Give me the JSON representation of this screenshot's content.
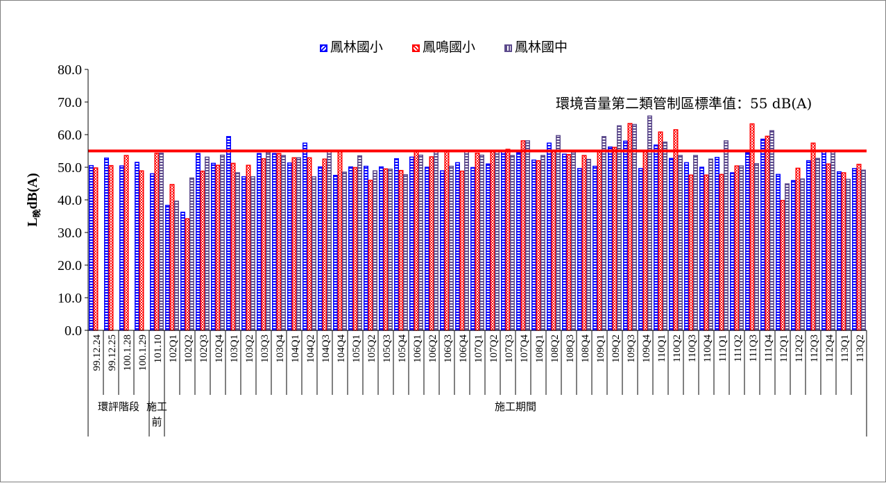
{
  "chart_data": {
    "type": "bar",
    "ylabel_main": "L",
    "ylabel_sub": "晚",
    "ylabel_unit": "dB(A)",
    "ylim": [
      0,
      80
    ],
    "yticks": [
      "0.0",
      "10.0",
      "20.0",
      "30.0",
      "40.0",
      "50.0",
      "60.0",
      "70.0",
      "80.0"
    ],
    "categories": [
      "99.12.24",
      "99.12.25",
      "100.1.28",
      "100.1.29",
      "101.10",
      "102Q1",
      "102Q2",
      "102Q3",
      "102Q4",
      "103Q1",
      "103Q2",
      "103Q3",
      "103Q4",
      "104Q1",
      "104Q2",
      "104Q3",
      "104Q4",
      "105Q1",
      "105Q2",
      "105Q3",
      "105Q4",
      "106Q1",
      "106Q2",
      "106Q3",
      "106Q4",
      "107Q1",
      "107Q2",
      "107Q3",
      "107Q4",
      "108Q1",
      "108Q2",
      "108Q3",
      "108Q4",
      "109Q1",
      "109Q2",
      "109Q3",
      "109Q4",
      "110Q1",
      "110Q2",
      "110Q3",
      "110Q4",
      "111Q1",
      "111Q2",
      "111Q3",
      "111Q4",
      "112Q1",
      "112Q2",
      "112Q3",
      "112Q4",
      "113Q1",
      "113Q2"
    ],
    "series": [
      {
        "name": "鳳林國小",
        "color": "#0000ff",
        "values": [
          50.5,
          52.8,
          50.4,
          51.5,
          48.0,
          38.3,
          36.2,
          54.2,
          51.2,
          59.4,
          47.1,
          54.2,
          54.2,
          51.3,
          57.4,
          50.1,
          47.5,
          50.1,
          50.3,
          50.1,
          52.6,
          53.1,
          50.0,
          48.9,
          51.4,
          49.9,
          51.0,
          55.0,
          54.4,
          52.2,
          57.4,
          54.0,
          49.6,
          50.3,
          56.2,
          58.0,
          49.6,
          56.8,
          52.7,
          51.4,
          50.0,
          53.0,
          48.3,
          54.4,
          58.6,
          47.8,
          45.9,
          52.0,
          55.0,
          48.6,
          49.6
        ]
      },
      {
        "name": "鳳鳴國小",
        "color": "#ff0000",
        "values": [
          49.8,
          50.5,
          53.6,
          48.9,
          54.3,
          44.7,
          34.2,
          48.8,
          50.6,
          51.2,
          50.6,
          52.6,
          54.2,
          52.9,
          52.9,
          52.5,
          54.8,
          49.9,
          46.0,
          49.5,
          49.0,
          54.9,
          53.2,
          54.8,
          48.8,
          54.3,
          54.8,
          55.5,
          58.1,
          52.0,
          55.2,
          53.9,
          53.6,
          54.7,
          56.1,
          63.4,
          54.8,
          60.8,
          61.5,
          47.6,
          47.6,
          47.8,
          50.4,
          63.3,
          59.5,
          39.8,
          49.7,
          57.4,
          51.0,
          48.3,
          50.9
        ]
      },
      {
        "name": "鳳林國中",
        "color": "#5c4a8c",
        "values": [
          null,
          null,
          null,
          null,
          54.3,
          39.6,
          46.7,
          53.1,
          53.7,
          48.3,
          47.1,
          54.5,
          53.6,
          52.9,
          47.1,
          55.0,
          48.5,
          53.5,
          48.9,
          49.4,
          47.7,
          53.7,
          54.7,
          50.3,
          54.9,
          53.7,
          55.0,
          53.6,
          58.1,
          53.6,
          59.7,
          54.6,
          52.4,
          59.4,
          62.7,
          63.1,
          65.7,
          57.7,
          53.6,
          53.6,
          52.5,
          58.1,
          50.4,
          51.1,
          61.2,
          44.9,
          46.4,
          52.7,
          54.7,
          46.3,
          49.1
        ]
      }
    ],
    "reference_line": {
      "value": 55,
      "color": "#ff0000",
      "label": "環境音量第二類管制區標準值：55 dB(A)"
    },
    "groups": [
      {
        "label_lines": [
          "環評階段"
        ],
        "start": 0,
        "end": 3
      },
      {
        "label_lines": [
          "施工",
          "前"
        ],
        "start": 4,
        "end": 4
      },
      {
        "label_lines": [
          "施工期間"
        ],
        "start": 5,
        "end": 50
      }
    ],
    "legend_position": "top"
  }
}
